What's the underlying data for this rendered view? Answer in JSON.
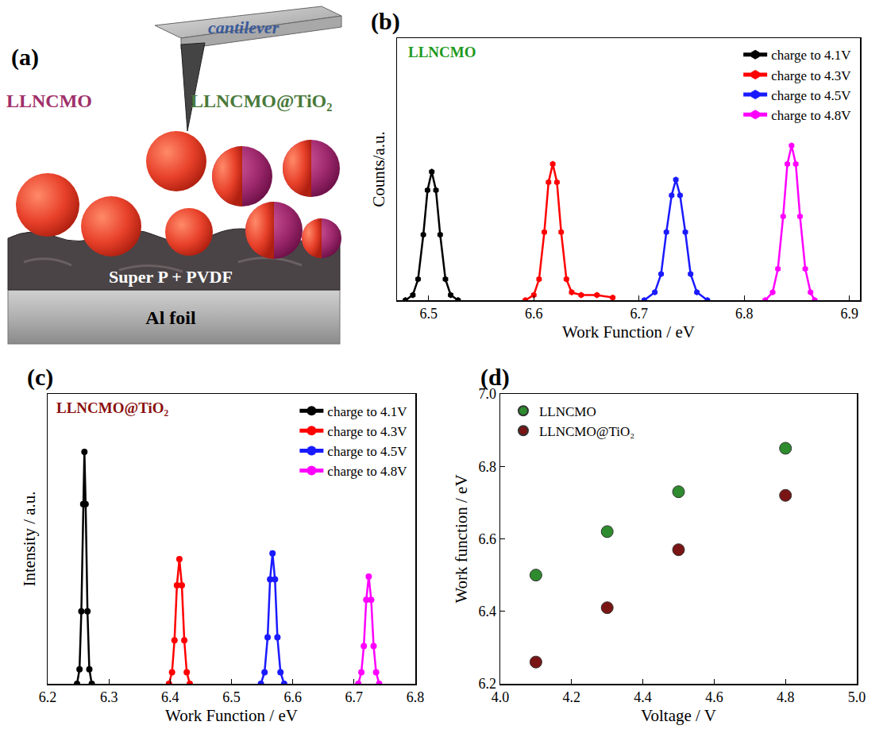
{
  "diagram": {
    "panel": "(a)",
    "cantilever": "cantilever",
    "left_particles": "LLNCMO",
    "right_particles": "LLNCMO@TiO₂",
    "layer": "Super P + PVDF",
    "substrate": "Al foil"
  },
  "chart_data": [
    {
      "type": "line",
      "title": "(b)",
      "x_label": "Work Function / eV",
      "y_label": "Counts/a.u.",
      "annotations": [
        {
          "text": "LLNCMO",
          "color": "#1f9a1f"
        }
      ],
      "marker": "hexagon",
      "line_style": "solid",
      "legend": "top-right",
      "grid": false,
      "tick_labels": "x",
      "xlim": [
        6.47,
        6.91
      ],
      "xticks": [
        6.5,
        6.6,
        6.7,
        6.8,
        6.9
      ],
      "ylim": [
        0,
        1
      ],
      "series": [
        {
          "name": "charge to 4.1V",
          "color": "#000000",
          "x": [
            6.478,
            6.485,
            6.49,
            6.495,
            6.499,
            6.503,
            6.507,
            6.511,
            6.516,
            6.521,
            6.528
          ],
          "values": [
            0,
            0.02,
            0.08,
            0.25,
            0.42,
            0.49,
            0.42,
            0.25,
            0.08,
            0.02,
            0
          ]
        },
        {
          "name": "charge to 4.3V",
          "color": "#ff0000",
          "x": [
            6.592,
            6.6,
            6.605,
            6.61,
            6.614,
            6.618,
            6.622,
            6.626,
            6.631,
            6.636,
            6.645,
            6.66,
            6.675
          ],
          "values": [
            0,
            0.02,
            0.08,
            0.26,
            0.45,
            0.52,
            0.45,
            0.26,
            0.08,
            0.03,
            0.02,
            0.02,
            0.01
          ]
        },
        {
          "name": "charge to 4.5V",
          "color": "#1a1aff",
          "x": [
            6.705,
            6.715,
            6.721,
            6.726,
            6.731,
            6.735,
            6.739,
            6.744,
            6.749,
            6.755,
            6.765
          ],
          "values": [
            0,
            0.03,
            0.1,
            0.26,
            0.4,
            0.46,
            0.4,
            0.26,
            0.1,
            0.03,
            0
          ]
        },
        {
          "name": "charge to 4.8V",
          "color": "#ff00ff",
          "x": [
            6.82,
            6.827,
            6.832,
            6.837,
            6.841,
            6.845,
            6.849,
            6.853,
            6.858,
            6.863,
            6.867
          ],
          "values": [
            0,
            0.03,
            0.12,
            0.32,
            0.52,
            0.59,
            0.52,
            0.32,
            0.12,
            0.03,
            0
          ]
        }
      ]
    },
    {
      "type": "line",
      "title": "(c)",
      "x_label": "Work Function / eV",
      "y_label": "Intensity / a.u.",
      "annotations": [
        {
          "text": "LLNCMO@TiO₂",
          "color": "#8b1010"
        }
      ],
      "marker": "circle",
      "line_style": "solid",
      "legend": "top-right",
      "grid": false,
      "tick_labels": "x",
      "xlim": [
        6.2,
        6.8
      ],
      "xticks": [
        6.2,
        6.3,
        6.4,
        6.5,
        6.6,
        6.7,
        6.8
      ],
      "ylim": [
        0,
        1
      ],
      "series": [
        {
          "name": "charge to 4.1V",
          "color": "#000000",
          "x": [
            6.248,
            6.252,
            6.255,
            6.258,
            6.26,
            6.262,
            6.265,
            6.268,
            6.272
          ],
          "values": [
            0,
            0.05,
            0.25,
            0.62,
            0.8,
            0.62,
            0.25,
            0.05,
            0
          ]
        },
        {
          "name": "charge to 4.3V",
          "color": "#ff0000",
          "x": [
            6.398,
            6.403,
            6.407,
            6.411,
            6.415,
            6.419,
            6.423,
            6.427,
            6.432
          ],
          "values": [
            0,
            0.04,
            0.15,
            0.34,
            0.43,
            0.34,
            0.15,
            0.04,
            0
          ]
        },
        {
          "name": "charge to 4.5V",
          "color": "#1a1aff",
          "x": [
            6.548,
            6.554,
            6.559,
            6.563,
            6.567,
            6.571,
            6.575,
            6.58,
            6.586
          ],
          "values": [
            0,
            0.04,
            0.16,
            0.36,
            0.45,
            0.36,
            0.16,
            0.04,
            0
          ]
        },
        {
          "name": "charge to 4.8V",
          "color": "#ff00ff",
          "x": [
            6.707,
            6.712,
            6.716,
            6.72,
            6.724,
            6.728,
            6.732,
            6.736,
            6.741
          ],
          "values": [
            0,
            0.04,
            0.13,
            0.29,
            0.37,
            0.29,
            0.13,
            0.04,
            0
          ]
        }
      ]
    },
    {
      "type": "scatter",
      "title": "(d)",
      "x_label": "Voltage / V",
      "y_label": "Work function / eV",
      "marker": "circle",
      "legend": "top-left",
      "grid": false,
      "xlim": [
        4.0,
        5.0
      ],
      "xticks": [
        {
          "value": 4,
          "label": "4.0"
        },
        4.2,
        4.4,
        4.6,
        4.8,
        {
          "value": 5,
          "label": "5.0"
        }
      ],
      "ylim": [
        6.2,
        7.0
      ],
      "yticks": [
        6.2,
        6.4,
        6.6,
        6.8,
        {
          "value": 7,
          "label": "7.0"
        }
      ],
      "x": [
        4.1,
        4.3,
        4.5,
        4.8
      ],
      "series": [
        {
          "name": "LLNCMO",
          "color": "#2e8b2e",
          "values": [
            6.5,
            6.62,
            6.73,
            6.85
          ]
        },
        {
          "name": "LLNCMO@TiO₂",
          "color": "#7a1515",
          "values": [
            6.26,
            6.41,
            6.57,
            6.72
          ]
        }
      ]
    }
  ]
}
